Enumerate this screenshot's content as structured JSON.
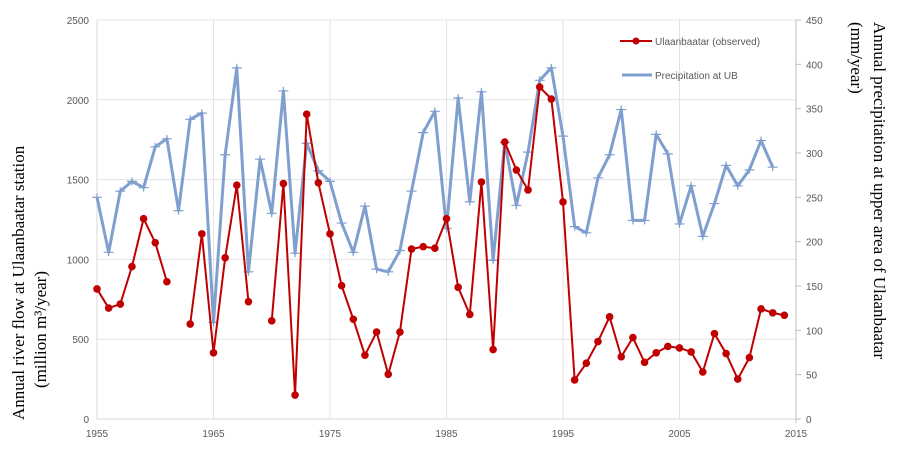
{
  "chart_data": {
    "type": "line",
    "title": "",
    "xlabel": "",
    "ylabel": [
      "Annual river flow at Ulaanbaatar station",
      "(million m³/year)"
    ],
    "y2label": [
      "Annual precipitation at upper area of Ulaanbaatar",
      "(mm/year)"
    ],
    "xlim": [
      1955,
      2015
    ],
    "ylim": [
      0,
      2500
    ],
    "y2lim": [
      0,
      450
    ],
    "grid": true,
    "legend_position": "top-right",
    "x_ticks": [
      "1955",
      "1965",
      "1975",
      "1985",
      "1995",
      "2005",
      "2015"
    ],
    "y_ticks": [
      "0",
      "500",
      "1000",
      "1500",
      "2000",
      "2500"
    ],
    "y2_ticks": [
      "0",
      "50",
      "100",
      "150",
      "200",
      "250",
      "300",
      "350",
      "400",
      "450"
    ],
    "x": [
      1955,
      1956,
      1957,
      1958,
      1959,
      1960,
      1961,
      1962,
      1963,
      1964,
      1965,
      1966,
      1967,
      1968,
      1969,
      1970,
      1971,
      1972,
      1973,
      1974,
      1975,
      1976,
      1977,
      1978,
      1979,
      1980,
      1981,
      1982,
      1983,
      1984,
      1985,
      1986,
      1987,
      1988,
      1989,
      1990,
      1991,
      1992,
      1993,
      1994,
      1995,
      1996,
      1997,
      1998,
      1999,
      2000,
      2001,
      2002,
      2003,
      2004,
      2005,
      2006,
      2007,
      2008,
      2009,
      2010,
      2011,
      2012,
      2013,
      2014
    ],
    "series": [
      {
        "name": "Ulaanbaatar (observed)",
        "axis": "left",
        "color": "#C00000",
        "values": [
          815,
          695,
          720,
          955,
          1255,
          1105,
          860,
          null,
          595,
          1160,
          415,
          1010,
          1465,
          735,
          null,
          615,
          1475,
          150,
          1910,
          1480,
          1160,
          835,
          625,
          400,
          545,
          280,
          545,
          1065,
          1080,
          1070,
          1255,
          825,
          655,
          1485,
          435,
          1735,
          1560,
          1435,
          2080,
          2005,
          1360,
          245,
          350,
          485,
          640,
          390,
          510,
          355,
          415,
          455,
          445,
          420,
          295,
          535,
          410,
          250,
          385,
          690,
          665,
          650
        ]
      },
      {
        "name": "Precipitation at UB",
        "axis": "right",
        "color": "#7F9FCF",
        "values": [
          250,
          188,
          257,
          268,
          261,
          307,
          316,
          235,
          338,
          345,
          109,
          298,
          396,
          166,
          293,
          232,
          370,
          187,
          311,
          280,
          268,
          221,
          188,
          240,
          169,
          166,
          190,
          257,
          323,
          347,
          215,
          362,
          245,
          369,
          179,
          312,
          241,
          301,
          382,
          396,
          319,
          217,
          210,
          272,
          298,
          349,
          224,
          224,
          321,
          299,
          220,
          263,
          206,
          243,
          286,
          263,
          281,
          314,
          284,
          null
        ]
      }
    ]
  }
}
